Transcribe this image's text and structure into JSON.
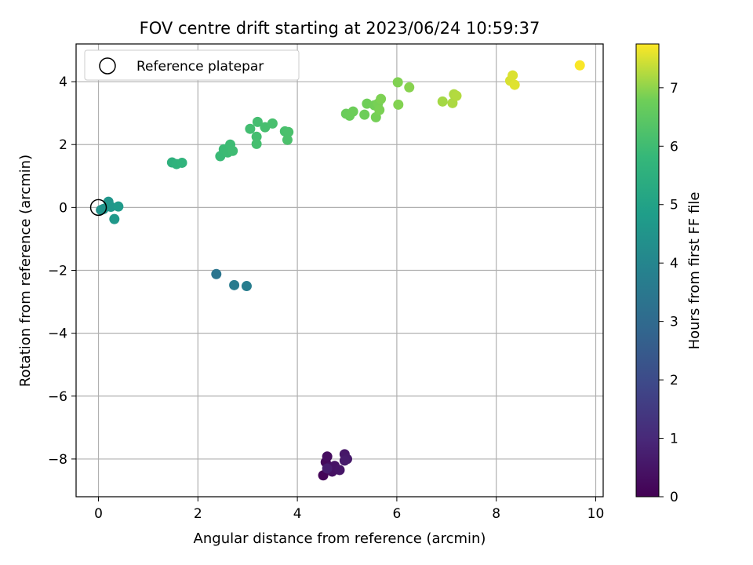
{
  "chart_data": {
    "type": "scatter",
    "title": "FOV centre drift starting at 2023/06/24 10:59:37",
    "xlabel": "Angular distance from reference (arcmin)",
    "ylabel": "Rotation from reference (arcmin)",
    "xlim": [
      -0.45,
      10.15
    ],
    "ylim": [
      -9.2,
      5.2
    ],
    "xticks": [
      0,
      2,
      4,
      6,
      8,
      10
    ],
    "yticks": [
      -8,
      -6,
      -4,
      -2,
      0,
      2,
      4
    ],
    "xtick_labels": [
      "0",
      "2",
      "4",
      "6",
      "8",
      "10"
    ],
    "ytick_labels": [
      "−8",
      "−6",
      "−4",
      "−2",
      "0",
      "2",
      "4"
    ],
    "grid": true,
    "legend": {
      "placement": "top-left",
      "entries": [
        {
          "label": "Reference platepar",
          "marker": "open-circle"
        }
      ]
    },
    "reference_point": {
      "x": 0,
      "y": 0
    },
    "colormap": "viridis",
    "colorbar": {
      "label": "Hours from first FF file",
      "range": [
        0,
        7.75
      ],
      "ticks": [
        0,
        1,
        2,
        3,
        4,
        5,
        6,
        7
      ],
      "tick_labels": [
        "0",
        "1",
        "2",
        "3",
        "4",
        "5",
        "6",
        "7"
      ]
    },
    "points": [
      {
        "x": 4.52,
        "y": -8.52,
        "c": 0.1
      },
      {
        "x": 4.57,
        "y": -8.1,
        "c": 0.2
      },
      {
        "x": 4.6,
        "y": -7.92,
        "c": 0.3
      },
      {
        "x": 4.65,
        "y": -8.25,
        "c": 0.35
      },
      {
        "x": 4.7,
        "y": -8.4,
        "c": 0.4
      },
      {
        "x": 4.75,
        "y": -8.22,
        "c": 0.45
      },
      {
        "x": 4.85,
        "y": -8.35,
        "c": 0.5
      },
      {
        "x": 4.95,
        "y": -7.85,
        "c": 0.55
      },
      {
        "x": 5.0,
        "y": -8.0,
        "c": 0.6
      },
      {
        "x": 4.95,
        "y": -8.05,
        "c": 0.65
      },
      {
        "x": 4.6,
        "y": -8.3,
        "c": 0.7
      },
      {
        "x": 2.37,
        "y": -2.12,
        "c": 3.4
      },
      {
        "x": 2.73,
        "y": -2.47,
        "c": 3.6
      },
      {
        "x": 2.98,
        "y": -2.5,
        "c": 3.7
      },
      {
        "x": 0.05,
        "y": -0.08,
        "c": 4.45
      },
      {
        "x": 0.1,
        "y": -0.05,
        "c": 4.5
      },
      {
        "x": 0.2,
        "y": 0.18,
        "c": 4.55
      },
      {
        "x": 0.25,
        "y": 0.02,
        "c": 4.6
      },
      {
        "x": 0.32,
        "y": -0.37,
        "c": 4.65
      },
      {
        "x": 0.4,
        "y": 0.03,
        "c": 4.7
      },
      {
        "x": 1.48,
        "y": 1.43,
        "c": 5.55
      },
      {
        "x": 1.57,
        "y": 1.38,
        "c": 5.6
      },
      {
        "x": 1.68,
        "y": 1.42,
        "c": 5.65
      },
      {
        "x": 2.45,
        "y": 1.63,
        "c": 5.9
      },
      {
        "x": 2.52,
        "y": 1.85,
        "c": 5.92
      },
      {
        "x": 2.6,
        "y": 1.75,
        "c": 5.95
      },
      {
        "x": 2.65,
        "y": 2.0,
        "c": 5.97
      },
      {
        "x": 2.7,
        "y": 1.8,
        "c": 6.0
      },
      {
        "x": 3.05,
        "y": 2.5,
        "c": 6.05
      },
      {
        "x": 3.18,
        "y": 2.25,
        "c": 6.07
      },
      {
        "x": 3.2,
        "y": 2.72,
        "c": 6.08
      },
      {
        "x": 3.18,
        "y": 2.02,
        "c": 6.1
      },
      {
        "x": 3.35,
        "y": 2.55,
        "c": 6.12
      },
      {
        "x": 3.5,
        "y": 2.67,
        "c": 6.14
      },
      {
        "x": 3.75,
        "y": 2.42,
        "c": 6.16
      },
      {
        "x": 3.82,
        "y": 2.4,
        "c": 6.18
      },
      {
        "x": 3.8,
        "y": 2.15,
        "c": 6.2
      },
      {
        "x": 4.98,
        "y": 2.98,
        "c": 6.7
      },
      {
        "x": 5.05,
        "y": 2.92,
        "c": 6.72
      },
      {
        "x": 5.12,
        "y": 3.05,
        "c": 6.74
      },
      {
        "x": 5.35,
        "y": 2.95,
        "c": 6.76
      },
      {
        "x": 5.4,
        "y": 3.3,
        "c": 6.78
      },
      {
        "x": 5.55,
        "y": 3.25,
        "c": 6.8
      },
      {
        "x": 5.58,
        "y": 2.87,
        "c": 6.82
      },
      {
        "x": 5.62,
        "y": 3.3,
        "c": 6.84
      },
      {
        "x": 5.65,
        "y": 3.1,
        "c": 6.86
      },
      {
        "x": 5.68,
        "y": 3.45,
        "c": 6.88
      },
      {
        "x": 6.02,
        "y": 3.98,
        "c": 6.9
      },
      {
        "x": 6.03,
        "y": 3.27,
        "c": 6.92
      },
      {
        "x": 6.25,
        "y": 3.82,
        "c": 6.95
      },
      {
        "x": 6.92,
        "y": 3.37,
        "c": 7.15
      },
      {
        "x": 7.12,
        "y": 3.32,
        "c": 7.2
      },
      {
        "x": 7.15,
        "y": 3.6,
        "c": 7.22
      },
      {
        "x": 7.2,
        "y": 3.55,
        "c": 7.25
      },
      {
        "x": 8.28,
        "y": 4.03,
        "c": 7.5
      },
      {
        "x": 8.33,
        "y": 4.2,
        "c": 7.52
      },
      {
        "x": 8.37,
        "y": 3.9,
        "c": 7.55
      },
      {
        "x": 9.68,
        "y": 4.52,
        "c": 7.72
      }
    ]
  }
}
